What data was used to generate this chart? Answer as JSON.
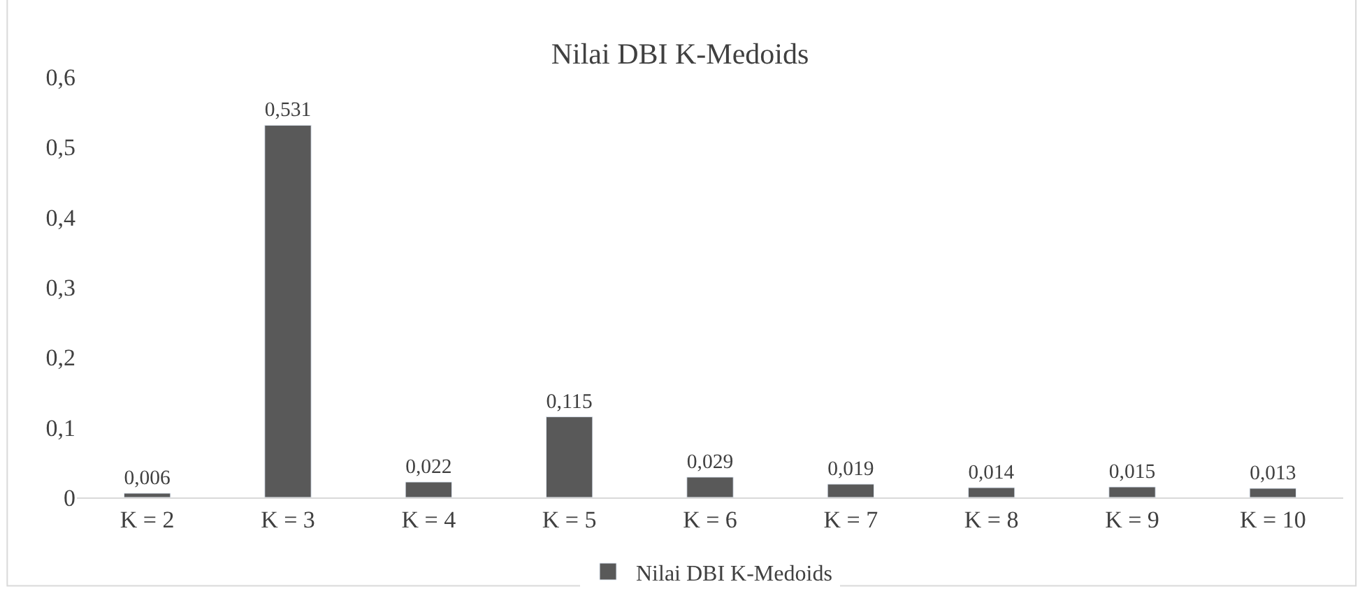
{
  "chart_data": {
    "type": "bar",
    "title": "Nilai DBI K-Medoids",
    "categories": [
      "K = 2",
      "K = 3",
      "K = 4",
      "K = 5",
      "K = 6",
      "K = 7",
      "K = 8",
      "K = 9",
      "K = 10"
    ],
    "series": [
      {
        "name": "Nilai DBI K-Medoids",
        "color": "#595959",
        "values": [
          0.006,
          0.531,
          0.022,
          0.115,
          0.029,
          0.019,
          0.014,
          0.015,
          0.013
        ],
        "value_labels": [
          "0,006",
          "0,531",
          "0,022",
          "0,115",
          "0,029",
          "0,019",
          "0,014",
          "0,015",
          "0,013"
        ]
      }
    ],
    "ylim": [
      0,
      0.6
    ],
    "yticks": [
      {
        "value": 0,
        "label": "0"
      },
      {
        "value": 0.1,
        "label": "0,1"
      },
      {
        "value": 0.2,
        "label": "0,2"
      },
      {
        "value": 0.3,
        "label": "0,3"
      },
      {
        "value": 0.4,
        "label": "0,4"
      },
      {
        "value": 0.5,
        "label": "0,5"
      },
      {
        "value": 0.6,
        "label": "0,6"
      }
    ],
    "grid": false,
    "legend": "bottom"
  }
}
